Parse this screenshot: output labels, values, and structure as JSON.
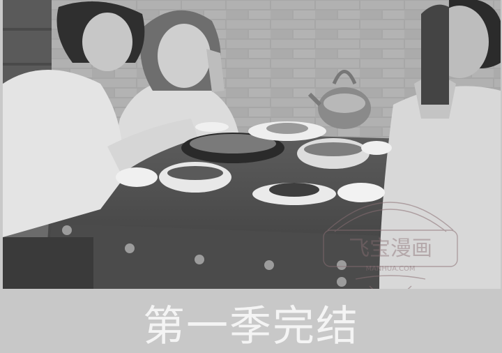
{
  "caption": {
    "text": "第一季完结"
  },
  "watermark": {
    "text": "飞宝漫画",
    "subtext": "MANHUA.COM"
  },
  "colors": {
    "caption_band": "#c8c8c8",
    "caption_text": "#f4f4f4",
    "watermark": "#8a6f74"
  }
}
